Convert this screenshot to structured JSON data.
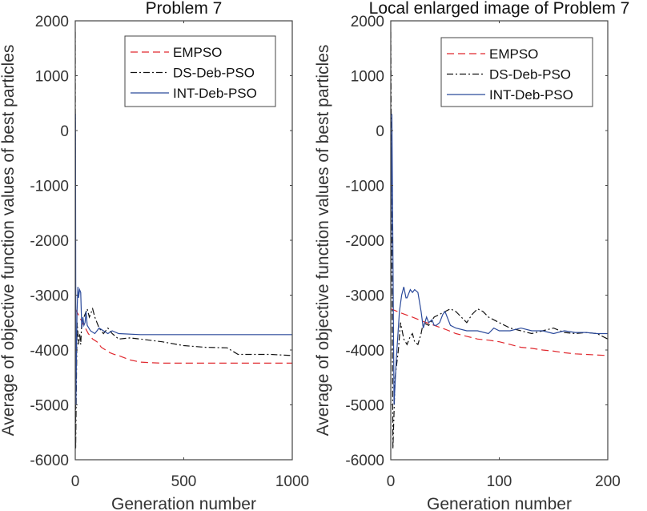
{
  "chart_data": [
    {
      "type": "line",
      "title": "Problem 7",
      "xlabel": "Generation number",
      "ylabel": "Average of objective function values of best particles",
      "xlim": [
        0,
        1000
      ],
      "ylim": [
        -6000,
        2000
      ],
      "xticks": [
        0,
        500,
        1000
      ],
      "yticks": [
        2000,
        1000,
        0,
        -1000,
        -2000,
        -3000,
        -4000,
        -5000,
        -6000
      ],
      "xtick_labels": [
        "0",
        "500",
        "1000"
      ],
      "ytick_labels": [
        "2000",
        "1000",
        "0",
        "-1000",
        "-2000",
        "-3000",
        "-4000",
        "-5000",
        "-6000"
      ],
      "grid": false,
      "legend_position": "top-right",
      "series": [
        {
          "name": "EMPSO",
          "color": "#e0282e",
          "style": "dashed",
          "x": [
            0,
            20,
            40,
            60,
            80,
            100,
            120,
            140,
            160,
            180,
            200,
            250,
            300,
            350,
            400,
            500,
            600,
            700,
            800,
            900,
            1000
          ],
          "y": [
            -3250,
            -3400,
            -3550,
            -3700,
            -3800,
            -3850,
            -3950,
            -4000,
            -4050,
            -4080,
            -4100,
            -4180,
            -4220,
            -4230,
            -4240,
            -4240,
            -4240,
            -4240,
            -4240,
            -4240,
            -4240
          ]
        },
        {
          "name": "DS-Deb-PSO",
          "color": "#111111",
          "style": "dashdot",
          "x": [
            0,
            2,
            7,
            9,
            15,
            20,
            25,
            30,
            40,
            55,
            65,
            80,
            90,
            100,
            110,
            130,
            150,
            170,
            200,
            250,
            300,
            400,
            500,
            600,
            700,
            750,
            800,
            900,
            1000
          ],
          "y": [
            1800,
            -5800,
            -4000,
            -3500,
            -3900,
            -3700,
            -3900,
            -3500,
            -3400,
            -3250,
            -3400,
            -3250,
            -3400,
            -3500,
            -3600,
            -3700,
            -3600,
            -3700,
            -3800,
            -3780,
            -3800,
            -3850,
            -3920,
            -3950,
            -3960,
            -4080,
            -4080,
            -4080,
            -4100
          ]
        },
        {
          "name": "INT-Deb-PSO",
          "color": "#2b4a9b",
          "style": "solid",
          "x": [
            0,
            1,
            3,
            8,
            12,
            15,
            20,
            25,
            30,
            35,
            40,
            45,
            50,
            55,
            70,
            90,
            110,
            130,
            150,
            170,
            200,
            300,
            400,
            500,
            600,
            700,
            800,
            900,
            1000
          ],
          "y": [
            -3000,
            300,
            -5000,
            -3300,
            -2850,
            -3050,
            -2900,
            -2950,
            -3600,
            -3400,
            -3550,
            -3500,
            -3300,
            -3550,
            -3650,
            -3700,
            -3600,
            -3650,
            -3700,
            -3650,
            -3700,
            -3720,
            -3720,
            -3720,
            -3720,
            -3720,
            -3720,
            -3720,
            -3720
          ]
        }
      ]
    },
    {
      "type": "line",
      "title": "Local enlarged image of Problem 7",
      "xlabel": "Generation number",
      "ylabel": "Average of objective function values of best particles",
      "xlim": [
        0,
        200
      ],
      "ylim": [
        -6000,
        2000
      ],
      "xticks": [
        0,
        100,
        200
      ],
      "yticks": [
        2000,
        1000,
        0,
        -1000,
        -2000,
        -3000,
        -4000,
        -5000,
        -6000
      ],
      "xtick_labels": [
        "0",
        "100",
        "200"
      ],
      "ytick_labels": [
        "2000",
        "1000",
        "0",
        "-1000",
        "-2000",
        "-3000",
        "-4000",
        "-5000",
        "-6000"
      ],
      "grid": false,
      "legend_position": "top-right",
      "series": [
        {
          "name": "EMPSO",
          "color": "#e0282e",
          "style": "dashed",
          "x": [
            0,
            10,
            20,
            30,
            40,
            50,
            60,
            70,
            80,
            90,
            100,
            110,
            120,
            130,
            140,
            150,
            160,
            170,
            180,
            190,
            200
          ],
          "y": [
            -3250,
            -3330,
            -3400,
            -3480,
            -3550,
            -3620,
            -3700,
            -3750,
            -3800,
            -3820,
            -3850,
            -3900,
            -3950,
            -3970,
            -4000,
            -4020,
            -4050,
            -4070,
            -4080,
            -4090,
            -4100
          ]
        },
        {
          "name": "DS-Deb-PSO",
          "color": "#111111",
          "style": "dashdot",
          "x": [
            0,
            2,
            4,
            7,
            9,
            12,
            15,
            18,
            20,
            22,
            25,
            28,
            30,
            35,
            40,
            45,
            50,
            55,
            60,
            65,
            70,
            75,
            80,
            85,
            90,
            95,
            100,
            110,
            120,
            130,
            140,
            150,
            160,
            170,
            180,
            190,
            200
          ],
          "y": [
            1800,
            -5800,
            -4500,
            -4000,
            -3500,
            -3800,
            -3900,
            -3750,
            -3700,
            -3850,
            -3900,
            -3700,
            -3500,
            -3550,
            -3400,
            -3350,
            -3300,
            -3250,
            -3300,
            -3400,
            -3500,
            -3350,
            -3250,
            -3300,
            -3400,
            -3450,
            -3500,
            -3600,
            -3650,
            -3700,
            -3650,
            -3600,
            -3680,
            -3700,
            -3680,
            -3700,
            -3800
          ]
        },
        {
          "name": "INT-Deb-PSO",
          "color": "#2b4a9b",
          "style": "solid",
          "x": [
            0,
            1,
            3,
            5,
            8,
            10,
            12,
            14,
            15,
            18,
            20,
            22,
            25,
            28,
            30,
            33,
            35,
            38,
            40,
            42,
            45,
            48,
            50,
            55,
            60,
            70,
            80,
            90,
            95,
            100,
            110,
            120,
            130,
            140,
            150,
            160,
            170,
            180,
            190,
            200
          ],
          "y": [
            -3000,
            300,
            -5000,
            -4200,
            -3300,
            -3000,
            -2850,
            -3050,
            -3050,
            -2900,
            -2950,
            -2900,
            -2950,
            -3300,
            -3600,
            -3400,
            -3500,
            -3450,
            -3550,
            -3550,
            -3500,
            -3350,
            -3300,
            -3550,
            -3600,
            -3650,
            -3650,
            -3700,
            -3600,
            -3650,
            -3650,
            -3600,
            -3650,
            -3650,
            -3700,
            -3650,
            -3680,
            -3680,
            -3700,
            -3700
          ]
        }
      ]
    }
  ]
}
